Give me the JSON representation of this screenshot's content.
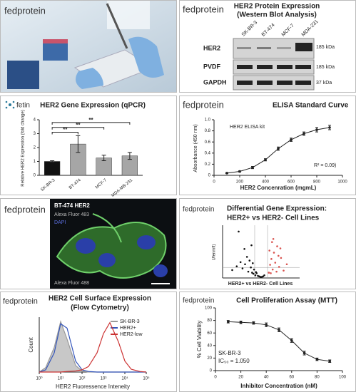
{
  "photo": {
    "logo": "fedprotein"
  },
  "blot": {
    "logo": "fedprotein",
    "title": "HER2 Protein Expression",
    "subtitle": "(Western Blot Analysis)",
    "lanes": [
      "SK-BR-3",
      "BT-474",
      "MCF-7",
      "MDA-231"
    ],
    "rows": [
      "HER2",
      "PVDF",
      "GAPDH"
    ],
    "sizes": [
      "185 kDa",
      "185 kDa",
      "37 kDa"
    ]
  },
  "fluorescence": {
    "logo": "fedprotein",
    "labels": [
      "BT-474 HER2",
      "Alexa Fluor 483",
      "DAPI",
      "Alexa Fluor 488"
    ]
  },
  "chart_data": [
    {
      "type": "bar",
      "logo": "fetin",
      "title": "HER2 Gene Expression (qPCR)",
      "ylabel": "Relative HER2 Expression (fold change)",
      "categories": [
        "SK-BR-3",
        "BT-474",
        "MCF-7",
        "MDA-MB-231"
      ],
      "values": [
        1.0,
        2.25,
        1.25,
        1.4
      ],
      "errors": [
        0.05,
        0.6,
        0.2,
        0.25
      ],
      "colors": [
        "#111111",
        "#a6a6a6",
        "#a6a6a6",
        "#a6a6a6"
      ],
      "ylim": [
        0,
        4
      ],
      "yticks": [
        0,
        1,
        2,
        3,
        4
      ],
      "annotations": [
        "**",
        "**",
        "**"
      ]
    },
    {
      "type": "line",
      "logo": "fedprotein",
      "title": "ELISA Standard Curve",
      "legend": "HER2 ELISA kit",
      "ylabel": "Absorbance (450 nm)",
      "xlabel": "HER2 Concenration (mgmL)",
      "annotation": "R² = 0.09)",
      "x": [
        100,
        200,
        300,
        400,
        500,
        600,
        700,
        800,
        900
      ],
      "values": [
        0.04,
        0.07,
        0.14,
        0.28,
        0.48,
        0.64,
        0.75,
        0.82,
        0.86
      ],
      "errors": [
        0.01,
        0.01,
        0.02,
        0.02,
        0.03,
        0.03,
        0.03,
        0.04,
        0.04
      ],
      "color": "#222222",
      "xlim": [
        0,
        1000
      ],
      "xticks": [
        0,
        200,
        400,
        600,
        800,
        1000
      ],
      "ylim": [
        0,
        1.0
      ],
      "yticks": [
        0,
        0.2,
        0.4,
        0.6,
        0.8,
        {
          "value": 1,
          "label": "1.0"
        }
      ]
    },
    {
      "type": "scatter",
      "logo": "fedprotein",
      "title": "Differential Gene Expression:",
      "subtitle": "HER2+ vs HER2- Cell Lines",
      "ylabel": "Ufenmfl)",
      "xlabel": "HER2+ vs HER2- Cell Lines",
      "xlim": [
        -6,
        6
      ],
      "ylim": [
        0,
        10
      ],
      "series": [
        {
          "color": "#111111",
          "x": [
            -4.5,
            -3.8,
            -3.2,
            -2.9,
            -2.5,
            -2.2,
            -2.0,
            -1.8,
            -1.6,
            -1.4,
            -1.3,
            -1.2,
            -1.1,
            -0.9,
            -0.7,
            -0.5,
            -0.3,
            -0.1,
            0.1,
            0.3,
            0.5,
            -2.6,
            -3.5,
            -1.5,
            -0.8
          ],
          "values": [
            1.5,
            2.2,
            3.0,
            1.8,
            2.6,
            4.0,
            1.2,
            3.3,
            2.0,
            1.0,
            2.8,
            0.8,
            1.6,
            0.5,
            0.9,
            0.4,
            0.3,
            0.2,
            0.2,
            0.3,
            0.5,
            5.5,
            8.8,
            6.2,
            1.1
          ]
        },
        {
          "color": "#d9534f",
          "x": [
            1.2,
            1.4,
            1.6,
            1.8,
            2.0,
            2.2,
            2.5,
            2.8,
            3.1,
            3.5,
            4.0,
            1.3,
            1.9,
            2.4,
            3.0,
            1.5,
            2.7,
            1.7
          ],
          "values": [
            1.0,
            2.5,
            3.6,
            1.6,
            4.8,
            2.9,
            6.0,
            2.1,
            3.8,
            1.4,
            2.6,
            5.2,
            7.4,
            1.2,
            5.6,
            0.9,
            4.2,
            6.8
          ]
        }
      ]
    },
    {
      "type": "line",
      "logo": "fedprotein",
      "title": "HER2 Cell Surface Expression",
      "subtitle": "(Flow Cytometry)",
      "ylabel": "Count",
      "xlabel": "HER2 Fluoressence Inteneity",
      "xscale": "log",
      "xlim": [
        1,
        100000
      ],
      "xticks": [
        {
          "value": 1,
          "label": "10⁰"
        },
        {
          "value": 10,
          "label": "10¹"
        },
        {
          "value": 100,
          "label": "10²"
        },
        {
          "value": 1000,
          "label": "10³"
        },
        {
          "value": 10000,
          "label": "10⁴"
        },
        {
          "value": 100000,
          "label": "10⁵"
        }
      ],
      "ylim": [
        0,
        100
      ],
      "x": [
        1,
        2,
        5,
        10,
        20,
        50,
        100,
        200,
        500,
        1000,
        2000,
        5000,
        10000,
        20000,
        50000,
        100000
      ],
      "series": [
        {
          "name": "SK-BR-3",
          "color": "#9a9a9a",
          "filled": true,
          "values": [
            0,
            8,
            45,
            92,
            60,
            12,
            2,
            0,
            0,
            0,
            0,
            0,
            0,
            0,
            0,
            0
          ]
        },
        {
          "name": "HER2+",
          "color": "#3355bb",
          "values": [
            0,
            4,
            35,
            88,
            80,
            20,
            4,
            1,
            0,
            0,
            0,
            0,
            0,
            0,
            0,
            0
          ]
        },
        {
          "name": "HER2-low",
          "color": "#cc3333",
          "values": [
            0,
            0,
            0,
            0,
            1,
            2,
            4,
            10,
            35,
            70,
            90,
            55,
            20,
            5,
            1,
            0
          ]
        }
      ]
    },
    {
      "type": "line",
      "logo": "fedprotein",
      "title": "Cell Proliferation Assay (MTT)",
      "ylabel": "% Cell Viability",
      "xlabel": "Inhibitor Concentration (nM)",
      "annotations": [
        "SK-BR-3",
        "IC₅₀ = 1.050"
      ],
      "x": [
        10,
        20,
        30,
        40,
        50,
        60,
        70,
        80,
        90
      ],
      "values": [
        78,
        77,
        76,
        73,
        65,
        48,
        28,
        18,
        15
      ],
      "errors": [
        2,
        2,
        2,
        3,
        3,
        3,
        3,
        2,
        2
      ],
      "color": "#222222",
      "xlim": [
        0,
        100
      ],
      "xticks": [
        0,
        20,
        40,
        60,
        80,
        100
      ],
      "ylim": [
        0,
        100
      ],
      "yticks": [
        0,
        20,
        40,
        60,
        80,
        100
      ]
    }
  ]
}
